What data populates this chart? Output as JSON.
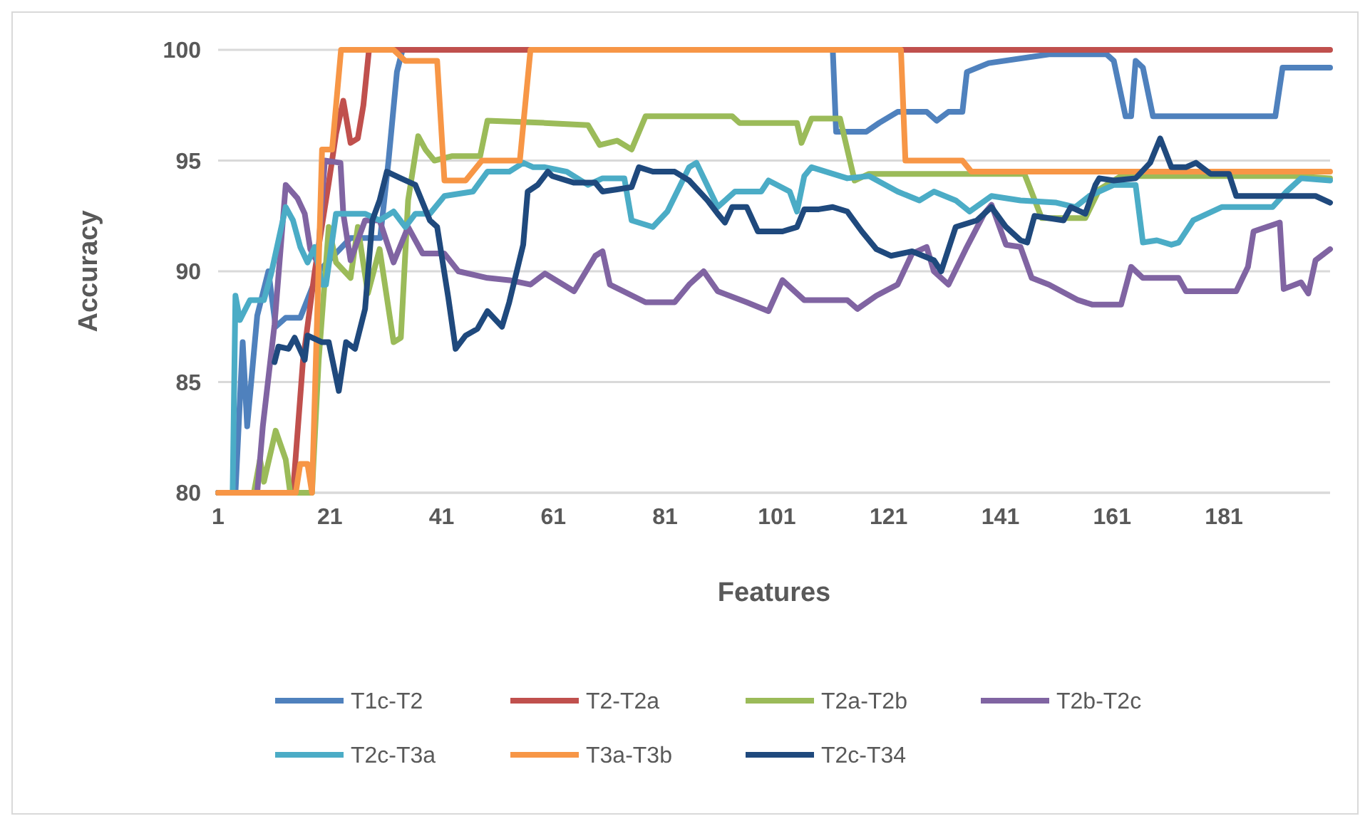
{
  "chart_data": {
    "type": "line",
    "xlabel": "Features",
    "ylabel": "Accuracy",
    "xlim": [
      1,
      200
    ],
    "xticks": [
      1,
      21,
      41,
      61,
      81,
      101,
      121,
      141,
      161,
      181
    ],
    "ylim": [
      80,
      100
    ],
    "yticks": [
      80,
      85,
      90,
      95,
      100
    ],
    "grid": "y",
    "legend": "bottom",
    "marker": "none",
    "line_style": "solid",
    "series": [
      {
        "name": "T1c-T2",
        "color": "#4f81bd",
        "x": [
          1,
          4.1,
          5.4,
          6.2,
          8,
          10,
          11.3,
          13.1,
          15.7,
          19,
          24.7,
          30,
          31.5,
          33,
          34,
          111,
          111.6,
          117,
          119.3,
          122.6,
          127.8,
          129.6,
          131.7,
          134.2,
          135,
          138.9,
          149.7,
          160,
          161.3,
          163.4,
          164.4,
          165.2,
          166.5,
          168.3,
          190.2,
          191.5,
          200
        ],
        "values": [
          80,
          80,
          86.8,
          83,
          88,
          90,
          87.5,
          87.9,
          87.9,
          90,
          91.5,
          91.5,
          95,
          99,
          100,
          100,
          96.3,
          96.3,
          96.7,
          97.2,
          97.2,
          96.8,
          97.2,
          97.2,
          99,
          99.4,
          99.8,
          99.8,
          99.5,
          97,
          97,
          99.5,
          99.2,
          97,
          97,
          99.2,
          99.2
        ]
      },
      {
        "name": "T2-T2a",
        "color": "#c0504d",
        "x": [
          1,
          14.4,
          15,
          16.2,
          18.3,
          20.8,
          22.1,
          23.4,
          24.7,
          26,
          27,
          28,
          200
        ],
        "values": [
          80,
          80,
          82,
          86,
          90,
          94,
          96.2,
          97.7,
          95.8,
          96,
          97.5,
          100,
          100
        ]
      },
      {
        "name": "T2a-T2b",
        "color": "#9bbb59",
        "x": [
          1,
          7.4,
          8.5,
          9.2,
          11.3,
          13.1,
          13.9,
          17.8,
          19,
          20.8,
          22.1,
          24.7,
          26,
          27.8,
          29.9,
          32.4,
          33.7,
          35,
          36.8,
          38.1,
          39.7,
          42.8,
          47.9,
          49.2,
          59.5,
          67.2,
          69.3,
          72.4,
          75,
          77.5,
          93,
          94.3,
          104.6,
          105.4,
          107.2,
          112.3,
          114.9,
          117.5,
          145.3,
          148.4,
          156.2,
          158.7,
          162.6,
          193.5,
          200
        ],
        "values": [
          80,
          80,
          81.5,
          80.5,
          82.8,
          81.5,
          80,
          80,
          86,
          92,
          90.4,
          89.7,
          92,
          89,
          91,
          86.8,
          87,
          93.2,
          96.1,
          95.5,
          95,
          95.2,
          95.2,
          96.8,
          96.7,
          96.6,
          95.7,
          95.9,
          95.5,
          97,
          97,
          96.7,
          96.7,
          95.8,
          96.9,
          96.9,
          94.1,
          94.4,
          94.4,
          92.4,
          92.4,
          93.7,
          94.3,
          94.3,
          94.2
        ]
      },
      {
        "name": "T2b-T2c",
        "color": "#8064a2",
        "x": [
          1,
          8,
          9,
          11.1,
          13.1,
          15.2,
          16.5,
          17.5,
          18.8,
          20.1,
          22.9,
          23.4,
          24.7,
          27.3,
          29.9,
          32.4,
          35,
          37.6,
          41.5,
          44,
          49.2,
          53.1,
          56.9,
          59.5,
          64.7,
          68.5,
          69.8,
          71.1,
          77.5,
          82.7,
          85.3,
          87.9,
          90.4,
          95.6,
          99.5,
          102,
          105.9,
          113.6,
          115.4,
          118.8,
          122.6,
          125.2,
          127.8,
          129.1,
          131.7,
          134.8,
          138.1,
          139.4,
          142,
          144.6,
          146.6,
          149.7,
          154.9,
          157.4,
          162.6,
          164.4,
          166.5,
          172.9,
          174.2,
          183.2,
          185.3,
          186.3,
          191,
          191.7,
          194.8,
          196.1,
          197.4,
          200
        ],
        "values": [
          80,
          80,
          83,
          87.6,
          93.9,
          93.3,
          92.6,
          91,
          90.4,
          95,
          94.9,
          92.6,
          90.5,
          92.3,
          92.3,
          90.4,
          92,
          90.8,
          90.8,
          90,
          89.7,
          89.6,
          89.4,
          89.9,
          89.1,
          90.7,
          90.9,
          89.4,
          88.6,
          88.6,
          89.4,
          90,
          89.1,
          88.6,
          88.2,
          89.6,
          88.7,
          88.7,
          88.3,
          88.9,
          89.4,
          90.8,
          91.1,
          90,
          89.4,
          91,
          92.6,
          93,
          91.2,
          91.1,
          89.7,
          89.4,
          88.7,
          88.5,
          88.5,
          90.2,
          89.7,
          89.7,
          89.1,
          89.1,
          90.2,
          91.8,
          92.2,
          89.2,
          89.5,
          89,
          90.5,
          91
        ]
      },
      {
        "name": "T2c-T3a",
        "color": "#4bacc6",
        "x": [
          1,
          3.6,
          4.1,
          4.9,
          6.7,
          9.2,
          10.5,
          13.1,
          14.4,
          15.7,
          17,
          18.3,
          19.6,
          20.3,
          22.1,
          27.3,
          29.9,
          32.4,
          34.5,
          36.3,
          38.9,
          41.5,
          46.6,
          49.2,
          53.1,
          55.6,
          57.4,
          59.5,
          63.4,
          67.2,
          69.8,
          73.7,
          75,
          78.8,
          81.4,
          85.3,
          86.6,
          90.4,
          93.5,
          98.2,
          99.5,
          103.3,
          104.6,
          105.9,
          107.2,
          113.6,
          117.5,
          122.6,
          126.5,
          129.1,
          133,
          135.5,
          139.4,
          144.6,
          151,
          154.4,
          156.9,
          161.3,
          165.2,
          166.5,
          169,
          171.6,
          172.9,
          175.5,
          180.6,
          189.7,
          192.2,
          194.8,
          200
        ],
        "values": [
          80,
          80,
          88.9,
          87.8,
          88.7,
          88.7,
          89.9,
          92.9,
          92.3,
          91.1,
          90.4,
          91.1,
          89.4,
          89.4,
          92.6,
          92.6,
          92.3,
          92.7,
          92,
          92.6,
          92.6,
          93.4,
          93.6,
          94.5,
          94.5,
          94.9,
          94.7,
          94.7,
          94.5,
          93.9,
          94.2,
          94.2,
          92.3,
          92,
          92.7,
          94.7,
          94.9,
          92.9,
          93.6,
          93.6,
          94.1,
          93.6,
          92.7,
          94.3,
          94.7,
          94.2,
          94.3,
          93.6,
          93.2,
          93.6,
          93.2,
          92.7,
          93.4,
          93.2,
          93.1,
          92.9,
          93.4,
          93.9,
          93.9,
          91.3,
          91.4,
          91.2,
          91.3,
          92.3,
          92.9,
          92.9,
          93.6,
          94.2,
          94.1
        ]
      },
      {
        "name": "T3a-T3b",
        "color": "#f79646",
        "x": [
          1,
          14.9,
          15.7,
          17,
          17.8,
          19.6,
          21.4,
          23,
          32.4,
          34.5,
          40.2,
          41.5,
          45.3,
          46.6,
          48.2,
          55,
          56.9,
          123.2,
          124,
          134.2,
          135.8,
          200
        ],
        "values": [
          80,
          80,
          81.3,
          81.3,
          80,
          95.5,
          95.5,
          100,
          100,
          99.5,
          99.5,
          94.1,
          94.1,
          94.5,
          95,
          95,
          100,
          100,
          95,
          95,
          94.5,
          94.5
        ]
      },
      {
        "name": "T2c-T34",
        "color": "#1f497d",
        "x": [
          11.1,
          11.8,
          13.6,
          14.7,
          16.5,
          17,
          19.6,
          20.8,
          22.6,
          23.9,
          25.5,
          27.3,
          28.6,
          29.9,
          31.2,
          33.7,
          36.3,
          38.9,
          40.2,
          42.2,
          43.5,
          45.3,
          47.4,
          49.2,
          51.8,
          53.1,
          55.6,
          56.4,
          58.2,
          60,
          60.8,
          64.7,
          68.5,
          69.8,
          72.4,
          75,
          76.3,
          78.8,
          82.7,
          85.3,
          88.6,
          90.4,
          91.7,
          93,
          95.6,
          97.6,
          102,
          104.6,
          105.9,
          108.5,
          111,
          113.6,
          116.2,
          118.8,
          121.4,
          125.2,
          129.1,
          130.4,
          133,
          136.8,
          139.4,
          142,
          144.6,
          145.8,
          147.1,
          152.3,
          153.6,
          156.2,
          158,
          158.7,
          161.3,
          165.2,
          167.8,
          169.6,
          171.6,
          174.2,
          176,
          178.6,
          181.9,
          183.2,
          197.4,
          200
        ],
        "values": [
          85.9,
          86.6,
          86.5,
          87,
          86,
          87.1,
          86.8,
          86.8,
          84.6,
          86.8,
          86.5,
          88.3,
          92.3,
          93.2,
          94.5,
          94.2,
          93.9,
          92.3,
          92,
          88.8,
          86.5,
          87.1,
          87.4,
          88.2,
          87.5,
          88.6,
          91.2,
          93.6,
          93.9,
          94.5,
          94.3,
          94,
          94,
          93.6,
          93.7,
          93.8,
          94.7,
          94.5,
          94.5,
          94.1,
          93.2,
          92.6,
          92.2,
          92.9,
          92.9,
          91.8,
          91.8,
          92,
          92.8,
          92.8,
          92.9,
          92.7,
          91.8,
          91,
          90.7,
          90.9,
          90.5,
          90,
          92,
          92.3,
          92.9,
          92,
          91.4,
          91.3,
          92.5,
          92.3,
          92.9,
          92.6,
          93.9,
          94.2,
          94.1,
          94.2,
          94.9,
          96,
          94.7,
          94.7,
          94.9,
          94.4,
          94.4,
          93.4,
          93.4,
          93.1
        ]
      }
    ]
  }
}
